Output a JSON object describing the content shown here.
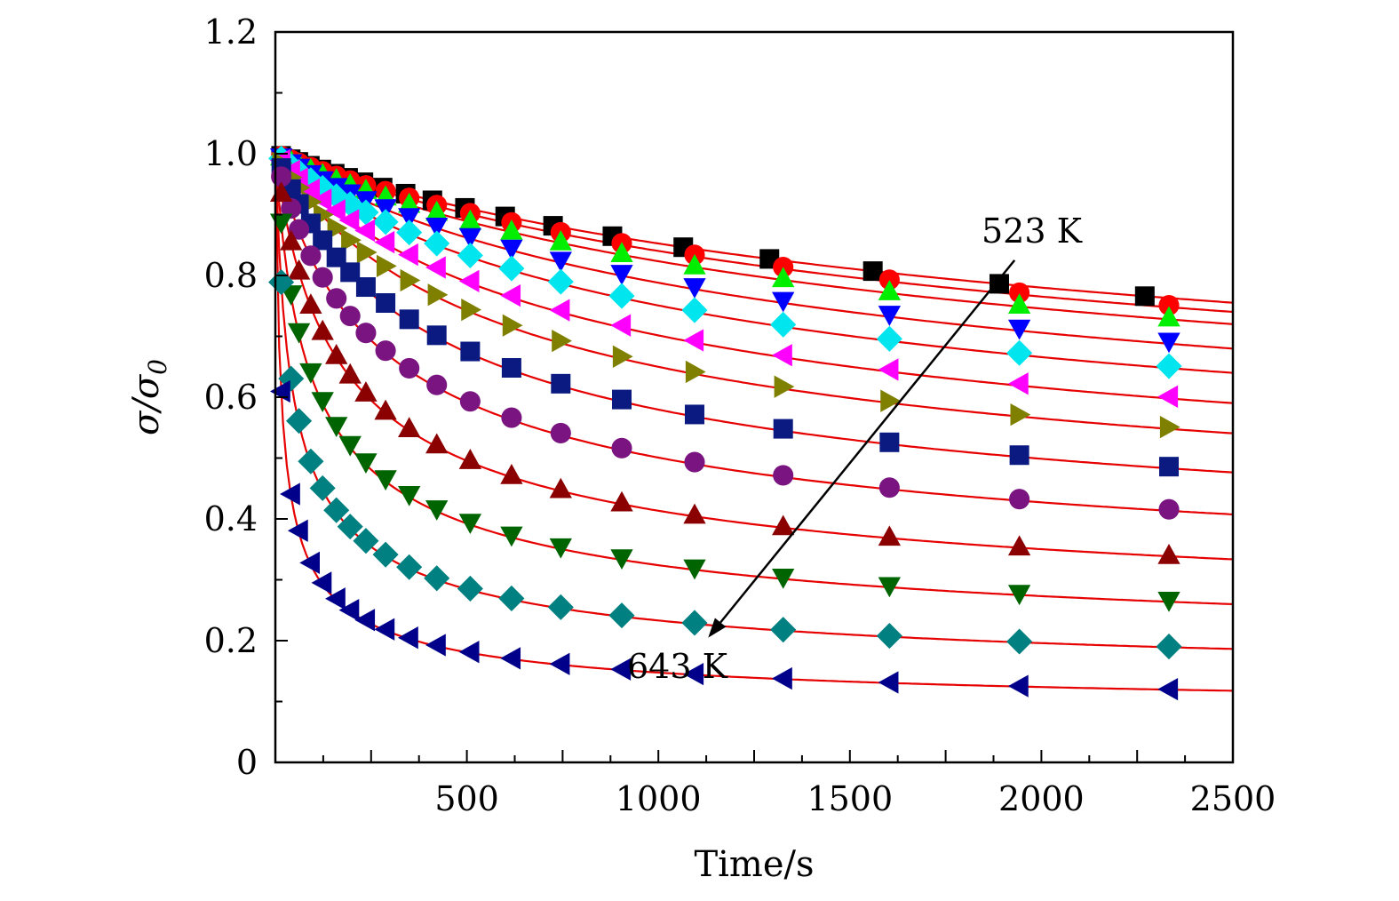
{
  "chart_data": {
    "type": "scatter",
    "title": "",
    "xlabel": "Time/s",
    "ylabel_main": "σ/σ",
    "ylabel_sub": "0",
    "xlim": [
      0,
      2500
    ],
    "ylim": [
      0,
      1.2
    ],
    "xticks": [
      500,
      1000,
      1500,
      2000,
      2500
    ],
    "xtick_labels": [
      "500",
      "1000",
      "1500",
      "2000",
      "2500"
    ],
    "yticks": [
      0,
      0.2,
      0.4,
      0.6,
      0.8,
      1.0,
      1.2
    ],
    "ytick_labels": [
      "0",
      "0.2",
      "0.4",
      "0.6",
      "0.8",
      "1.0",
      "1.2"
    ],
    "fit_color": "#e60000",
    "annotations": {
      "top_label": "523 K",
      "bottom_label": "643 K",
      "arrow_start": [
        1930,
        0.825
      ],
      "arrow_end": [
        1130,
        0.205
      ]
    },
    "series": [
      {
        "marker": "square",
        "color": "#000000",
        "end_value": 0.765,
        "shift": 0
      },
      {
        "marker": "circle",
        "color": "#ff0000",
        "end_value": 0.75,
        "shift": 1
      },
      {
        "marker": "triangle-up",
        "color": "#00ee00",
        "end_value": 0.73,
        "shift": 1
      },
      {
        "marker": "triangle-down",
        "color": "#0000ff",
        "end_value": 0.69,
        "shift": 1
      },
      {
        "marker": "diamond",
        "color": "#00e5ee",
        "end_value": 0.65,
        "shift": 1
      },
      {
        "marker": "triangle-left",
        "color": "#ff00ff",
        "end_value": 0.6,
        "shift": 1
      },
      {
        "marker": "triangle-right",
        "color": "#808000",
        "end_value": 0.55,
        "shift": 1
      },
      {
        "marker": "square",
        "color": "#0a1a80",
        "end_value": 0.485,
        "shift": 1
      },
      {
        "marker": "circle",
        "color": "#7a1480",
        "end_value": 0.415,
        "shift": 1
      },
      {
        "marker": "triangle-up",
        "color": "#8b0000",
        "end_value": 0.34,
        "shift": 1
      },
      {
        "marker": "triangle-down",
        "color": "#006400",
        "end_value": 0.265,
        "shift": 1
      },
      {
        "marker": "diamond",
        "color": "#008080",
        "end_value": 0.19,
        "shift": 1
      },
      {
        "marker": "triangle-left",
        "color": "#00008b",
        "end_value": 0.12,
        "shift": 1
      }
    ]
  }
}
